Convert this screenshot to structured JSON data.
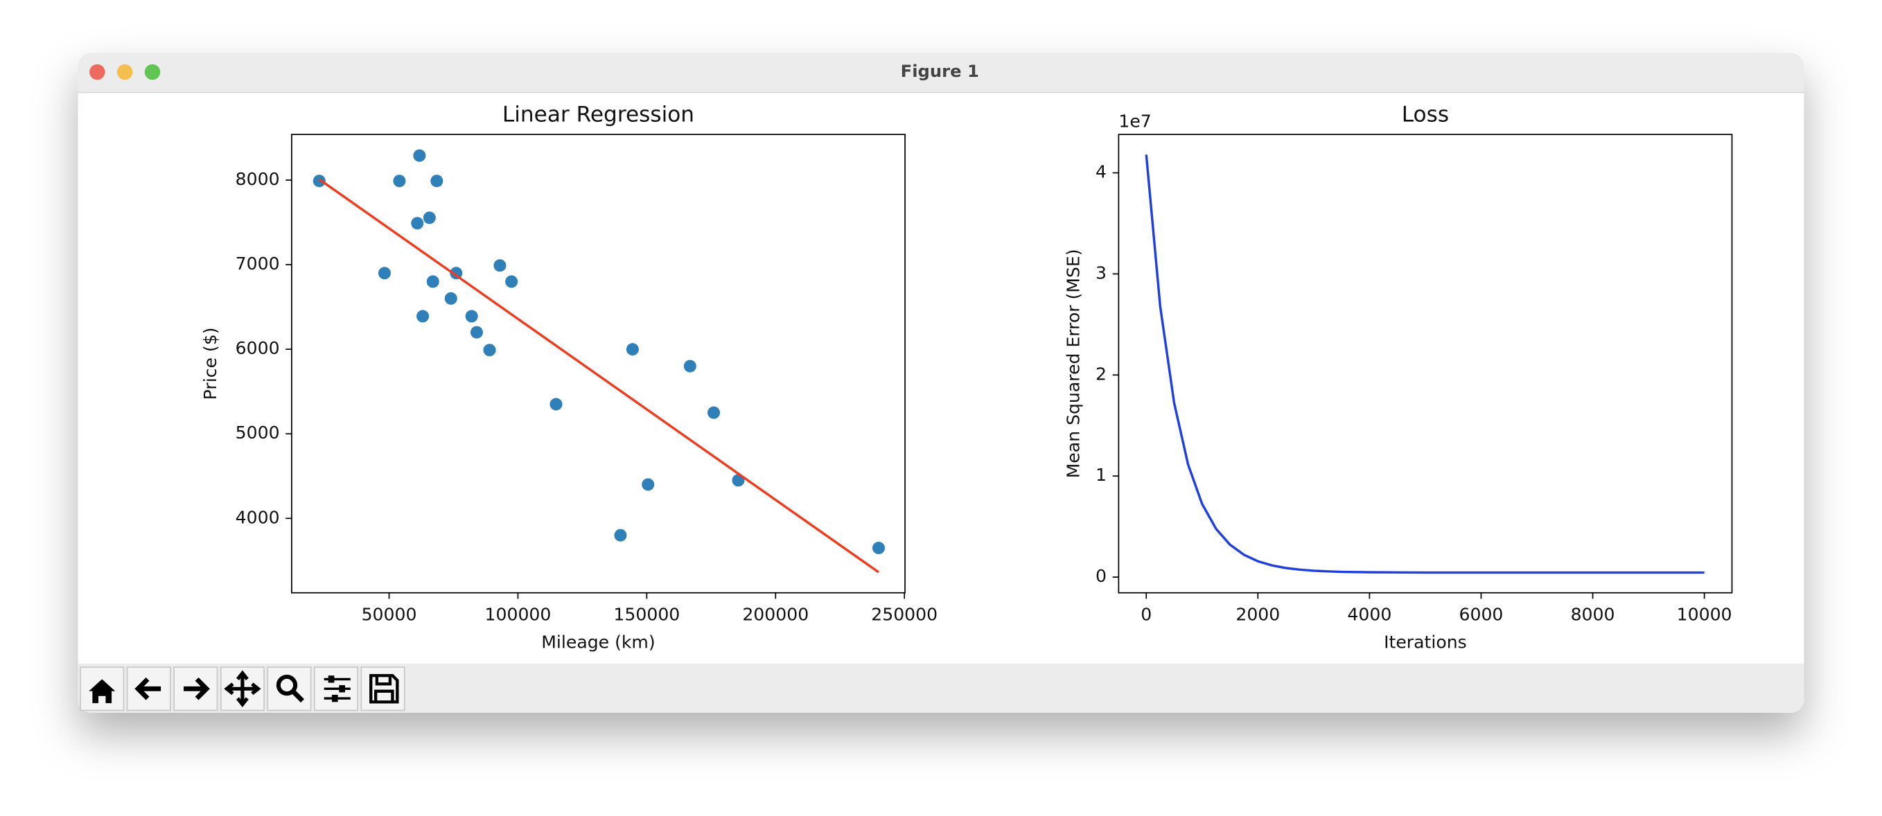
{
  "window": {
    "title": "Figure 1"
  },
  "chart_data": [
    {
      "type": "scatter",
      "title": "Linear Regression",
      "x_label": "Mileage (km)",
      "y_label": "Price ($)",
      "points": {
        "color": "#2f7fb8",
        "x": [
          240000,
          139800,
          150500,
          185530,
          176000,
          114800,
          166800,
          89000,
          144500,
          84000,
          82029,
          63060,
          74000,
          97500,
          67000,
          76025,
          48235,
          93000,
          60949,
          65674,
          54000,
          68500,
          22899,
          61789
        ],
        "y": [
          3650,
          3800,
          4400,
          4450,
          5250,
          5350,
          5800,
          5990,
          5999,
          6200,
          6390,
          6390,
          6600,
          6800,
          6800,
          6900,
          6900,
          6990,
          7490,
          7555,
          7990,
          7990,
          7990,
          8290
        ]
      },
      "fit_line": {
        "color": "#f03c1e",
        "x": [
          22899,
          240000
        ],
        "y": [
          8009,
          3363
        ]
      },
      "xlim": [
        12180,
        250230
      ],
      "ylim": [
        3120,
        8540
      ],
      "xticks": [
        50000,
        100000,
        150000,
        200000,
        250000
      ],
      "yticks": [
        4000,
        5000,
        6000,
        7000,
        8000
      ]
    },
    {
      "type": "line",
      "title": "Loss",
      "x_label": "Iterations",
      "y_label": "Mean Squared Error (MSE)",
      "offset_label": "1e7",
      "color": "#1f3fe0",
      "x": [
        0,
        250,
        500,
        750,
        1000,
        1250,
        1500,
        1750,
        2000,
        2250,
        2500,
        2750,
        3000,
        3250,
        3500,
        4000,
        5000,
        6000,
        7000,
        8000,
        9000,
        10000
      ],
      "values": [
        4.18,
        2.678,
        1.722,
        1.113,
        0.725,
        0.478,
        0.321,
        0.221,
        0.157,
        0.116,
        0.09,
        0.074,
        0.063,
        0.057,
        0.052,
        0.048,
        0.045,
        0.045,
        0.045,
        0.045,
        0.045,
        0.045
      ],
      "xlim": [
        -495,
        10495
      ],
      "ylim": [
        -0.155,
        4.38
      ],
      "xticks": [
        0,
        2000,
        4000,
        6000,
        8000,
        10000
      ],
      "yticks": [
        0,
        1,
        2,
        3,
        4
      ]
    }
  ]
}
